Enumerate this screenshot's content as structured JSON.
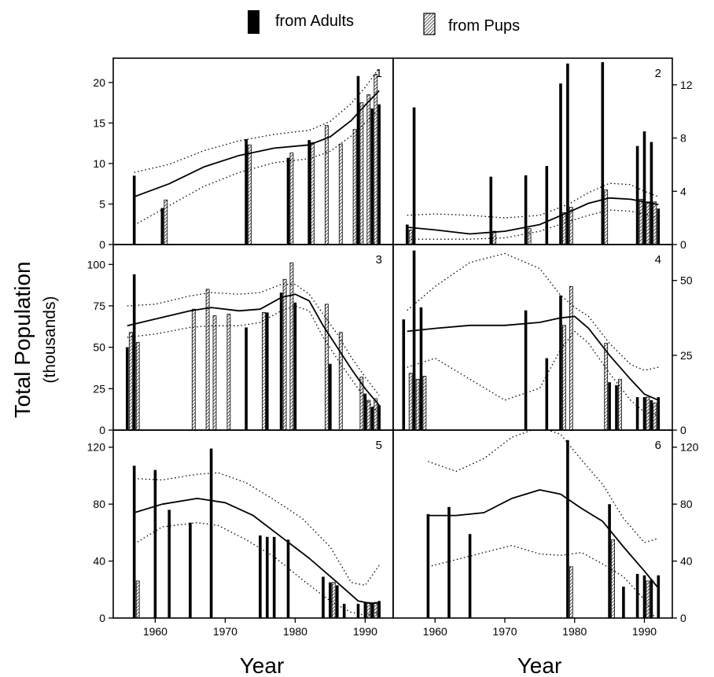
{
  "legend": {
    "adults_label": "from Adults",
    "pups_label": "from Pups"
  },
  "ylabel_main": "Total Population",
  "ylabel_sub": "(thousands)",
  "xlabel_left": "Year",
  "xlabel_right": "Year",
  "chart_data": [
    {
      "type": "bar",
      "panel": "1",
      "ylim": [
        0,
        23
      ],
      "xlim": [
        1954,
        1994
      ],
      "yticks": [
        0,
        5,
        10,
        15,
        20
      ],
      "xticks": [],
      "adults": [
        [
          1957,
          8.5
        ],
        [
          1961,
          4.5
        ],
        [
          1973,
          13
        ],
        [
          1979,
          10.7
        ],
        [
          1982,
          12.9
        ],
        [
          1989,
          20.8
        ],
        [
          1991,
          16.8
        ],
        [
          1992,
          17.3
        ]
      ],
      "pups": [
        [
          1961.5,
          5.5
        ],
        [
          1973.5,
          12.3
        ],
        [
          1979.5,
          11.3
        ],
        [
          1982.5,
          12.6
        ],
        [
          1984.5,
          14.7
        ],
        [
          1986.5,
          12.4
        ],
        [
          1988.5,
          14.2
        ],
        [
          1989.5,
          17.5
        ],
        [
          1990.5,
          18.5
        ],
        [
          1991.5,
          21
        ]
      ],
      "fit": [
        [
          1957,
          5.9
        ],
        [
          1962,
          7.5
        ],
        [
          1967,
          9.6
        ],
        [
          1972,
          11.0
        ],
        [
          1977,
          11.9
        ],
        [
          1982,
          12.3
        ],
        [
          1985,
          13.3
        ],
        [
          1988,
          15.3
        ],
        [
          1990,
          17.2
        ],
        [
          1992,
          19
        ]
      ],
      "ci_upper": [
        [
          1957,
          8.9
        ],
        [
          1962,
          9.9
        ],
        [
          1967,
          11.6
        ],
        [
          1972,
          12.8
        ],
        [
          1977,
          13.6
        ],
        [
          1982,
          14.1
        ],
        [
          1985,
          15.2
        ],
        [
          1988,
          17.4
        ],
        [
          1990,
          19.4
        ],
        [
          1992,
          21.8
        ]
      ],
      "ci_lower": [
        [
          1957,
          2.4
        ],
        [
          1962,
          4.8
        ],
        [
          1967,
          7.2
        ],
        [
          1972,
          8.9
        ],
        [
          1977,
          10.1
        ],
        [
          1982,
          10.6
        ],
        [
          1985,
          11.5
        ],
        [
          1988,
          13.4
        ],
        [
          1990,
          15.0
        ],
        [
          1992,
          16.7
        ]
      ]
    },
    {
      "type": "bar",
      "panel": "2",
      "ylim": [
        0,
        14
      ],
      "xlim": [
        1954,
        1994
      ],
      "yticks": [
        0,
        4,
        8,
        12
      ],
      "xticks": [],
      "adults": [
        [
          1956,
          1.5
        ],
        [
          1957,
          10.3
        ],
        [
          1968,
          5.1
        ],
        [
          1973,
          5.2
        ],
        [
          1976,
          5.9
        ],
        [
          1978,
          12.1
        ],
        [
          1979,
          13.6
        ],
        [
          1984,
          13.7
        ],
        [
          1989,
          7.4
        ],
        [
          1990,
          8.5
        ],
        [
          1991,
          7.7
        ],
        [
          1992,
          2.7
        ]
      ],
      "pups": [
        [
          1956.5,
          1.1
        ],
        [
          1968.5,
          1.0
        ],
        [
          1973.5,
          1.2
        ],
        [
          1978.5,
          2.4
        ],
        [
          1979.5,
          2.8
        ],
        [
          1984.5,
          4.1
        ],
        [
          1989.5,
          3.4
        ],
        [
          1990.5,
          3.2
        ],
        [
          1991.5,
          3.2
        ]
      ],
      "fit": [
        [
          1956,
          1.3
        ],
        [
          1960,
          1.1
        ],
        [
          1965,
          0.8
        ],
        [
          1970,
          1.0
        ],
        [
          1975,
          1.5
        ],
        [
          1979,
          2.4
        ],
        [
          1982,
          3.1
        ],
        [
          1985,
          3.5
        ],
        [
          1988,
          3.4
        ],
        [
          1990,
          3.2
        ],
        [
          1992,
          3.0
        ]
      ],
      "ci_upper": [
        [
          1956,
          2.2
        ],
        [
          1960,
          2.3
        ],
        [
          1965,
          2.2
        ],
        [
          1970,
          2.0
        ],
        [
          1975,
          2.2
        ],
        [
          1979,
          3.0
        ],
        [
          1982,
          3.9
        ],
        [
          1985,
          4.6
        ],
        [
          1988,
          4.5
        ],
        [
          1990,
          4.0
        ],
        [
          1992,
          3.6
        ]
      ],
      "ci_lower": [
        [
          1956,
          0.4
        ],
        [
          1960,
          0.4
        ],
        [
          1965,
          0.4
        ],
        [
          1970,
          0.5
        ],
        [
          1975,
          1.0
        ],
        [
          1979,
          1.7
        ],
        [
          1982,
          2.2
        ],
        [
          1985,
          2.6
        ],
        [
          1988,
          2.5
        ],
        [
          1990,
          2.3
        ],
        [
          1992,
          2.0
        ]
      ]
    },
    {
      "type": "bar",
      "panel": "3",
      "ylim": [
        0,
        112
      ],
      "xlim": [
        1954,
        1994
      ],
      "yticks": [
        0,
        25,
        50,
        75,
        100
      ],
      "xticks": [],
      "adults": [
        [
          1956,
          50
        ],
        [
          1957,
          94
        ],
        [
          1973,
          62
        ],
        [
          1976,
          71
        ],
        [
          1978,
          83
        ],
        [
          1980,
          77
        ],
        [
          1985,
          40
        ],
        [
          1990,
          22
        ],
        [
          1991,
          14
        ],
        [
          1992,
          15
        ]
      ],
      "pups": [
        [
          1956.5,
          59
        ],
        [
          1957.5,
          53
        ],
        [
          1965.5,
          73
        ],
        [
          1967.5,
          85
        ],
        [
          1968.5,
          69
        ],
        [
          1970.5,
          70
        ],
        [
          1975.5,
          71
        ],
        [
          1978.5,
          91
        ],
        [
          1979.5,
          101
        ],
        [
          1984.5,
          76
        ],
        [
          1986.5,
          59
        ],
        [
          1989.5,
          32
        ],
        [
          1990.5,
          18
        ],
        [
          1991.5,
          19
        ]
      ],
      "fit": [
        [
          1956,
          63
        ],
        [
          1960,
          67
        ],
        [
          1965,
          72
        ],
        [
          1968,
          74
        ],
        [
          1972,
          72
        ],
        [
          1975,
          73
        ],
        [
          1978,
          80
        ],
        [
          1980,
          82
        ],
        [
          1982,
          78
        ],
        [
          1984,
          63
        ],
        [
          1986,
          50
        ],
        [
          1988,
          37
        ],
        [
          1990,
          25
        ],
        [
          1992,
          15
        ]
      ],
      "ci_upper": [
        [
          1956,
          75
        ],
        [
          1960,
          76
        ],
        [
          1965,
          81
        ],
        [
          1968,
          83
        ],
        [
          1972,
          82
        ],
        [
          1975,
          83
        ],
        [
          1978,
          88
        ],
        [
          1980,
          88
        ],
        [
          1982,
          82
        ],
        [
          1984,
          70
        ],
        [
          1986,
          58
        ],
        [
          1988,
          44
        ],
        [
          1990,
          32
        ],
        [
          1992,
          21
        ]
      ],
      "ci_lower": [
        [
          1956,
          56
        ],
        [
          1960,
          58
        ],
        [
          1965,
          62
        ],
        [
          1968,
          63
        ],
        [
          1972,
          63
        ],
        [
          1975,
          65
        ],
        [
          1978,
          72
        ],
        [
          1980,
          75
        ],
        [
          1982,
          72
        ],
        [
          1984,
          56
        ],
        [
          1986,
          43
        ],
        [
          1988,
          31
        ],
        [
          1990,
          19
        ],
        [
          1992,
          10
        ]
      ]
    },
    {
      "type": "bar",
      "panel": "4",
      "ylim": [
        0,
        62
      ],
      "xlim": [
        1954,
        1994
      ],
      "yticks": [
        0,
        25,
        50
      ],
      "xticks": [],
      "adults": [
        [
          1955.5,
          37
        ],
        [
          1957,
          60
        ],
        [
          1958,
          41
        ],
        [
          1973,
          40
        ],
        [
          1976,
          24
        ],
        [
          1978,
          45
        ],
        [
          1985,
          16
        ],
        [
          1986,
          15
        ],
        [
          1989,
          11
        ],
        [
          1990,
          11
        ],
        [
          1991,
          10
        ],
        [
          1992,
          11
        ]
      ],
      "pups": [
        [
          1956.5,
          19
        ],
        [
          1957.5,
          17
        ],
        [
          1958.5,
          18
        ],
        [
          1978.5,
          35
        ],
        [
          1979.5,
          48
        ],
        [
          1984.5,
          29
        ],
        [
          1986.5,
          17
        ],
        [
          1990.5,
          11
        ],
        [
          1991.5,
          9
        ]
      ],
      "fit": [
        [
          1956,
          33
        ],
        [
          1960,
          34
        ],
        [
          1965,
          35
        ],
        [
          1970,
          35
        ],
        [
          1975,
          36
        ],
        [
          1978,
          37.5
        ],
        [
          1980,
          38
        ],
        [
          1982,
          34
        ],
        [
          1985,
          25
        ],
        [
          1988,
          17
        ],
        [
          1990,
          12
        ],
        [
          1992,
          10
        ]
      ],
      "ci_upper": [
        [
          1956,
          40
        ],
        [
          1960,
          48
        ],
        [
          1965,
          56
        ],
        [
          1970,
          59
        ],
        [
          1975,
          54
        ],
        [
          1978,
          45
        ],
        [
          1980,
          41
        ],
        [
          1982,
          38
        ],
        [
          1985,
          29
        ],
        [
          1988,
          22
        ],
        [
          1990,
          20
        ],
        [
          1992,
          21
        ]
      ],
      "ci_lower": [
        [
          1956,
          21
        ],
        [
          1960,
          24
        ],
        [
          1965,
          17
        ],
        [
          1970,
          10
        ],
        [
          1975,
          14
        ],
        [
          1978,
          27
        ],
        [
          1980,
          33
        ],
        [
          1982,
          29
        ],
        [
          1985,
          19
        ],
        [
          1988,
          10
        ],
        [
          1990,
          6
        ],
        [
          1992,
          5
        ]
      ]
    },
    {
      "type": "bar",
      "panel": "5",
      "ylim": [
        0,
        132
      ],
      "xlim": [
        1954,
        1994
      ],
      "yticks": [
        0,
        40,
        80,
        120
      ],
      "xticks": [
        1960,
        1970,
        1980,
        1990
      ],
      "adults": [
        [
          1957,
          107
        ],
        [
          1960,
          104
        ],
        [
          1962,
          76
        ],
        [
          1965,
          67
        ],
        [
          1968,
          119
        ],
        [
          1975,
          58
        ],
        [
          1976,
          57
        ],
        [
          1977,
          57
        ],
        [
          1979,
          55
        ],
        [
          1984,
          29
        ],
        [
          1985,
          25
        ],
        [
          1986,
          23
        ],
        [
          1987,
          10
        ],
        [
          1989,
          10
        ],
        [
          1990,
          11
        ],
        [
          1991,
          11
        ],
        [
          1992,
          12
        ]
      ],
      "pups": [
        [
          1957.5,
          26
        ],
        [
          1985.5,
          25
        ],
        [
          1990.5,
          11
        ],
        [
          1991.5,
          11
        ]
      ],
      "fit": [
        [
          1957,
          74
        ],
        [
          1961,
          80
        ],
        [
          1966,
          84
        ],
        [
          1970,
          81
        ],
        [
          1974,
          72
        ],
        [
          1978,
          57
        ],
        [
          1982,
          42
        ],
        [
          1986,
          25
        ],
        [
          1989,
          12
        ],
        [
          1991,
          10
        ],
        [
          1992,
          11
        ]
      ],
      "ci_upper": [
        [
          1957,
          98
        ],
        [
          1961,
          97
        ],
        [
          1966,
          101
        ],
        [
          1969,
          102
        ],
        [
          1973,
          95
        ],
        [
          1977,
          83
        ],
        [
          1981,
          70
        ],
        [
          1985,
          50
        ],
        [
          1988,
          25
        ],
        [
          1990,
          23
        ],
        [
          1992,
          37
        ]
      ],
      "ci_lower": [
        [
          1957,
          52
        ],
        [
          1961,
          64
        ],
        [
          1966,
          67
        ],
        [
          1969,
          65
        ],
        [
          1973,
          55
        ],
        [
          1977,
          43
        ],
        [
          1981,
          27
        ],
        [
          1985,
          12
        ],
        [
          1988,
          4
        ],
        [
          1990,
          2
        ],
        [
          1992,
          4
        ]
      ]
    },
    {
      "type": "bar",
      "panel": "6",
      "ylim": [
        0,
        132
      ],
      "xlim": [
        1954,
        1994
      ],
      "yticks": [
        0,
        40,
        80,
        120
      ],
      "xticks": [
        1960,
        1970,
        1980,
        1990
      ],
      "adults": [
        [
          1959,
          73
        ],
        [
          1962,
          78
        ],
        [
          1965,
          59
        ],
        [
          1979,
          125
        ],
        [
          1985,
          80
        ],
        [
          1987,
          22
        ],
        [
          1989,
          31
        ],
        [
          1990,
          30
        ],
        [
          1991,
          27
        ],
        [
          1992,
          30
        ]
      ],
      "pups": [
        [
          1979.5,
          36
        ],
        [
          1985.5,
          55
        ],
        [
          1990.5,
          26
        ]
      ],
      "fit": [
        [
          1959,
          72
        ],
        [
          1963,
          72
        ],
        [
          1967,
          74
        ],
        [
          1971,
          84
        ],
        [
          1975,
          90
        ],
        [
          1978,
          87
        ],
        [
          1981,
          77
        ],
        [
          1984,
          68
        ],
        [
          1987,
          50
        ],
        [
          1990,
          33
        ],
        [
          1992,
          21
        ]
      ],
      "ci_upper": [
        [
          1959,
          110
        ],
        [
          1963,
          103
        ],
        [
          1967,
          112
        ],
        [
          1971,
          127
        ],
        [
          1975,
          134
        ],
        [
          1978,
          129
        ],
        [
          1981,
          111
        ],
        [
          1984,
          94
        ],
        [
          1987,
          70
        ],
        [
          1990,
          53
        ],
        [
          1992,
          56
        ]
      ],
      "ci_lower": [
        [
          1959,
          36
        ],
        [
          1963,
          41
        ],
        [
          1967,
          46
        ],
        [
          1971,
          51
        ],
        [
          1975,
          45
        ],
        [
          1978,
          44
        ],
        [
          1981,
          46
        ],
        [
          1984,
          38
        ],
        [
          1987,
          29
        ],
        [
          1990,
          13
        ],
        [
          1992,
          -4
        ]
      ]
    }
  ]
}
